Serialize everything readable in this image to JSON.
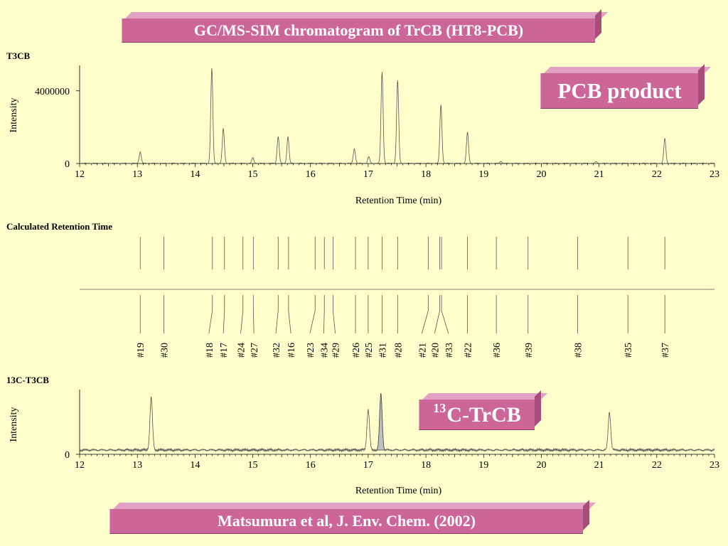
{
  "header": {
    "title": "GC/MS-SIM chromatogram of TrCB (HT8-PCB)"
  },
  "badges": {
    "pcb_product": "PCB product",
    "c13_sup": "13",
    "c13_rest": "C-TrCB"
  },
  "footer": {
    "citation": "Matsumura et al, J. Env. Chem. (2002)"
  },
  "colors": {
    "background": "#ffffcc",
    "banner": "#cc6699",
    "banner_text": "#ffffff",
    "trace": "#555555",
    "shaded_peak": "#c0c0c0"
  },
  "chart_data": [
    {
      "type": "line",
      "panel_label": "T3CB",
      "xlabel": "Retention Time (min)",
      "ylabel": "Intensity",
      "xlim": [
        12,
        23
      ],
      "ylim": [
        0,
        5400000
      ],
      "x_ticks": [
        12,
        13,
        14,
        15,
        16,
        17,
        18,
        19,
        20,
        21,
        22,
        23
      ],
      "y_ticks": [
        0,
        4000000
      ],
      "grid": false,
      "peaks": [
        {
          "rt": 13.05,
          "height": 620000
        },
        {
          "rt": 14.29,
          "height": 5200000
        },
        {
          "rt": 14.49,
          "height": 1900000
        },
        {
          "rt": 15.0,
          "height": 300000
        },
        {
          "rt": 15.44,
          "height": 1450000
        },
        {
          "rt": 15.61,
          "height": 1450000
        },
        {
          "rt": 16.76,
          "height": 800000
        },
        {
          "rt": 17.01,
          "height": 350000
        },
        {
          "rt": 17.24,
          "height": 5000000
        },
        {
          "rt": 17.51,
          "height": 4550000
        },
        {
          "rt": 18.26,
          "height": 3200000
        },
        {
          "rt": 18.72,
          "height": 1700000
        },
        {
          "rt": 19.3,
          "height": 90000
        },
        {
          "rt": 20.95,
          "height": 80000
        },
        {
          "rt": 22.14,
          "height": 1350000
        }
      ]
    },
    {
      "type": "scatter",
      "panel_label": "Calculated Retention Time",
      "xlim": [
        12,
        23
      ],
      "markers": [
        {
          "rt": 13.05,
          "label": "#19",
          "label_rt": 13.05
        },
        {
          "rt": 13.46,
          "label": "#30",
          "label_rt": 13.46
        },
        {
          "rt": 14.3,
          "label": "#18",
          "label_rt": 14.24
        },
        {
          "rt": 14.51,
          "label": "#17",
          "label_rt": 14.49
        },
        {
          "rt": 14.83,
          "label": "#24",
          "label_rt": 14.79
        },
        {
          "rt": 15.01,
          "label": "#27",
          "label_rt": 15.02
        },
        {
          "rt": 15.44,
          "label": "#32",
          "label_rt": 15.4
        },
        {
          "rt": 15.62,
          "label": "#16",
          "label_rt": 15.66
        },
        {
          "rt": 16.08,
          "label": "#23",
          "label_rt": 15.99
        },
        {
          "rt": 16.24,
          "label": "#34",
          "label_rt": 16.23
        },
        {
          "rt": 16.39,
          "label": "#29",
          "label_rt": 16.43
        },
        {
          "rt": 16.78,
          "label": "#26",
          "label_rt": 16.78
        },
        {
          "rt": 17.0,
          "label": "#25",
          "label_rt": 17.0
        },
        {
          "rt": 17.24,
          "label": "#31",
          "label_rt": 17.24
        },
        {
          "rt": 17.51,
          "label": "#28",
          "label_rt": 17.51
        },
        {
          "rt": 18.04,
          "label": "#21",
          "label_rt": 17.93
        },
        {
          "rt": 18.24,
          "label": "#20",
          "label_rt": 18.15
        },
        {
          "rt": 18.27,
          "label": "#33",
          "label_rt": 18.39
        },
        {
          "rt": 18.72,
          "label": "#22",
          "label_rt": 18.72
        },
        {
          "rt": 19.22,
          "label": "#36",
          "label_rt": 19.22
        },
        {
          "rt": 19.77,
          "label": "#39",
          "label_rt": 19.77
        },
        {
          "rt": 20.63,
          "label": "#38",
          "label_rt": 20.63
        },
        {
          "rt": 21.5,
          "label": "#35",
          "label_rt": 21.5
        },
        {
          "rt": 22.14,
          "label": "#37",
          "label_rt": 22.14
        }
      ]
    },
    {
      "type": "line",
      "panel_label": "13C-T3CB",
      "xlabel": "Retention Time (min)",
      "ylabel": "Intensity",
      "xlim": [
        12,
        23
      ],
      "x_ticks": [
        12,
        13,
        14,
        15,
        16,
        17,
        18,
        19,
        20,
        21,
        22,
        23
      ],
      "y_ticks": [
        0
      ],
      "grid": false,
      "noise_level": 0.03,
      "peaks": [
        {
          "rt": 13.24,
          "height": 0.93,
          "shaded": false
        },
        {
          "rt": 17.0,
          "height": 0.72,
          "shaded": false
        },
        {
          "rt": 17.22,
          "height": 1.0,
          "shaded": true
        },
        {
          "rt": 21.18,
          "height": 0.67,
          "shaded": false
        }
      ]
    }
  ]
}
